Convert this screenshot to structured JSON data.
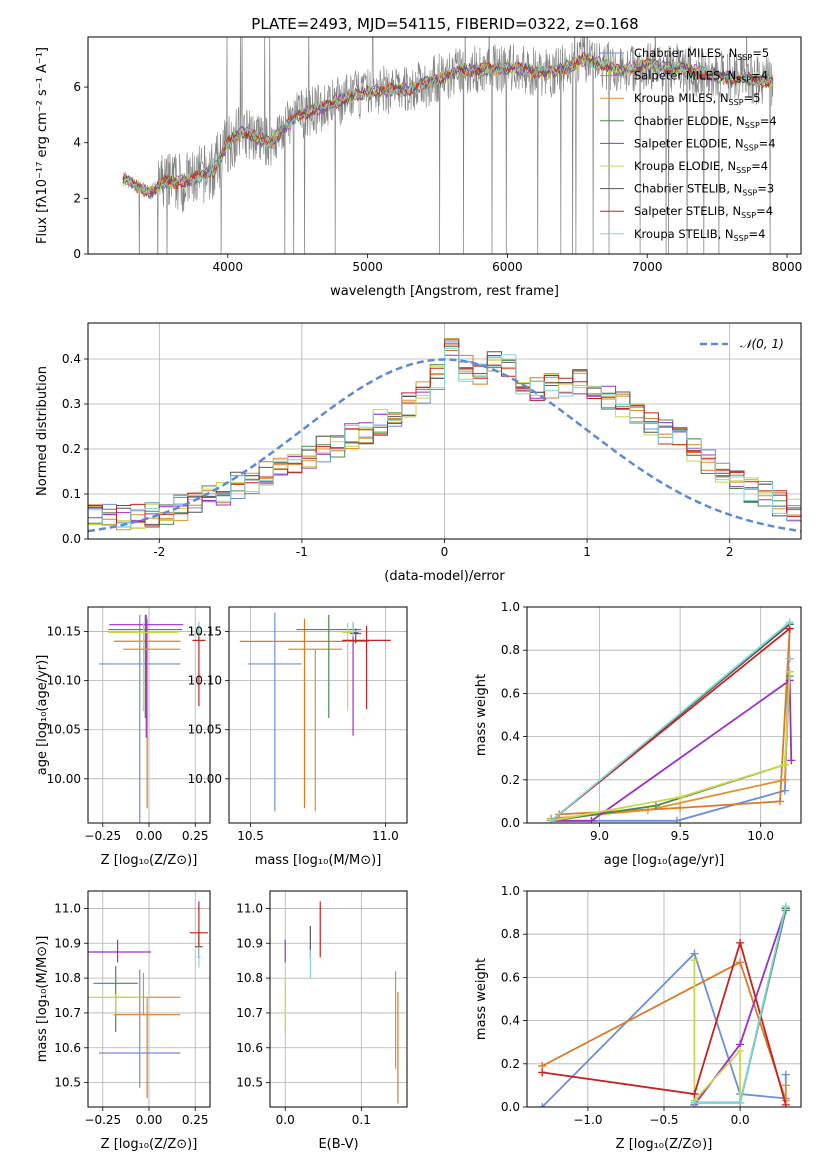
{
  "figure_title": "PLATE=2493, MJD=54115, FIBERID=0322, z=0.168",
  "colors": {
    "Chabrier MILES": "#6a8fdc",
    "Salpeter MILES": "#dd7a26",
    "Kroupa MILES": "#e58f2c",
    "Chabrier ELODIE": "#4e8a4e",
    "Salpeter ELODIE": "#9b30c8",
    "Kroupa ELODIE": "#c8d84a",
    "Chabrier STELIB": "#555555",
    "Salpeter STELIB": "#c8211e",
    "Kroupa STELIB": "#7fd8d8",
    "normal": "#5b8bd8",
    "data": "#808080"
  },
  "chart_data": [
    {
      "id": "spectrum",
      "type": "line",
      "title": "PLATE=2493, MJD=54115, FIBERID=0322, z=0.168",
      "xlabel": "wavelength [Angstrom, rest frame]",
      "ylabel": "Flux [fλ10⁻¹⁷ erg cm⁻² s⁻¹ A⁻¹]",
      "xlim": [
        3000,
        8100
      ],
      "ylim": [
        0,
        7.8
      ],
      "xticks": [
        4000,
        5000,
        6000,
        7000,
        8000
      ],
      "yticks": [
        0,
        2,
        4,
        6
      ],
      "x_start": 3250,
      "x_end": 7900,
      "continuum_anchors": [
        [
          3250,
          2.7
        ],
        [
          3450,
          2.2
        ],
        [
          3550,
          2.6
        ],
        [
          3700,
          2.6
        ],
        [
          3900,
          3.0
        ],
        [
          4000,
          4.0
        ],
        [
          4100,
          4.4
        ],
        [
          4300,
          4.0
        ],
        [
          4500,
          5.0
        ],
        [
          4700,
          5.3
        ],
        [
          4900,
          5.7
        ],
        [
          5100,
          5.9
        ],
        [
          5300,
          5.9
        ],
        [
          5500,
          6.3
        ],
        [
          5700,
          6.6
        ],
        [
          6000,
          6.7
        ],
        [
          6300,
          6.5
        ],
        [
          6560,
          7.0
        ],
        [
          6800,
          6.6
        ],
        [
          7000,
          6.8
        ],
        [
          7300,
          6.6
        ],
        [
          7500,
          6.4
        ],
        [
          7900,
          6.2
        ]
      ],
      "legend": [
        {
          "label": "Chabrier MILES, N",
          "sub": "SSP",
          "value": "=5"
        },
        {
          "label": "Salpeter MILES, N",
          "sub": "SSP",
          "value": "=4"
        },
        {
          "label": "Kroupa MILES, N",
          "sub": "SSP",
          "value": "=5"
        },
        {
          "label": "Chabrier ELODIE, N",
          "sub": "SSP",
          "value": "=4"
        },
        {
          "label": "Salpeter ELODIE, N",
          "sub": "SSP",
          "value": "=4"
        },
        {
          "label": "Kroupa ELODIE, N",
          "sub": "SSP",
          "value": "=4"
        },
        {
          "label": "Chabrier STELIB, N",
          "sub": "SSP",
          "value": "=3"
        },
        {
          "label": "Salpeter STELIB, N",
          "sub": "SSP",
          "value": "=4"
        },
        {
          "label": "Kroupa STELIB, N",
          "sub": "SSP",
          "value": "=4"
        }
      ],
      "series": [
        "Chabrier MILES",
        "Salpeter MILES",
        "Kroupa MILES",
        "Chabrier ELODIE",
        "Salpeter ELODIE",
        "Kroupa ELODIE",
        "Chabrier STELIB",
        "Salpeter STELIB",
        "Kroupa STELIB"
      ],
      "grid": false,
      "legend_position": "right"
    },
    {
      "id": "residuals",
      "type": "line",
      "xlabel": "(data-model)/error",
      "ylabel": "Normed distribution",
      "xlim": [
        -2.5,
        2.5
      ],
      "ylim": [
        0,
        0.48
      ],
      "xticks": [
        -2,
        -1,
        0,
        1,
        2
      ],
      "yticks": [
        0.0,
        0.1,
        0.2,
        0.3,
        0.4
      ],
      "ytick_labels": [
        "0.0",
        "0.1",
        "0.2",
        "0.3",
        "0.4"
      ],
      "legend": "𝒩(0, 1)",
      "legend_position": "top-right",
      "grid": true,
      "bin_width": 0.1,
      "histogram_mean": [
        0.05,
        0.05,
        0.05,
        0.05,
        0.055,
        0.06,
        0.07,
        0.08,
        0.09,
        0.1,
        0.12,
        0.13,
        0.145,
        0.16,
        0.17,
        0.18,
        0.2,
        0.21,
        0.23,
        0.24,
        0.26,
        0.28,
        0.3,
        0.33,
        0.36,
        0.43,
        0.38,
        0.37,
        0.4,
        0.38,
        0.35,
        0.33,
        0.34,
        0.34,
        0.35,
        0.33,
        0.31,
        0.3,
        0.28,
        0.26,
        0.24,
        0.22,
        0.2,
        0.17,
        0.15,
        0.13,
        0.11,
        0.1,
        0.08,
        0.06
      ]
    },
    {
      "id": "age-vs-z",
      "type": "scatter",
      "xlabel": "Z [log₁₀(Z/Z⊙)]",
      "ylabel": "age  [log₁₀(age/yr)]",
      "xlim": [
        -0.33,
        0.33
      ],
      "ylim": [
        9.955,
        10.175
      ],
      "xticks": [
        -0.25,
        0.0,
        0.25
      ],
      "xtick_labels": [
        "−0.25",
        "0.00",
        "0.25"
      ],
      "yticks": [
        10.0,
        10.05,
        10.1,
        10.15
      ],
      "ytick_labels": [
        "10.00",
        "10.05",
        "10.10",
        "10.15"
      ],
      "grid": true,
      "points": [
        {
          "series": "Chabrier MILES",
          "x": -0.05,
          "y": 10.117,
          "xerr": 0.22,
          "yerr_lo": 0.18,
          "yerr_hi": 0.05
        },
        {
          "series": "Salpeter MILES",
          "x": -0.01,
          "y": 10.14,
          "xerr": 0.18,
          "yerr_lo": 0.17,
          "yerr_hi": 0.023
        },
        {
          "series": "Kroupa MILES",
          "x": -0.01,
          "y": 10.14,
          "xerr": 0.18,
          "yerr_lo": 0.17,
          "yerr_hi": 0.023
        },
        {
          "series": "Chabrier ELODIE",
          "x": -0.02,
          "y": 10.152,
          "xerr": 0.2,
          "yerr_lo": 0.09,
          "yerr_hi": 0.015
        },
        {
          "series": "Salpeter ELODIE",
          "x": -0.015,
          "y": 10.157,
          "xerr": 0.2,
          "yerr_lo": 0.115,
          "yerr_hi": 0.01
        },
        {
          "series": "Kroupa ELODIE",
          "x": -0.03,
          "y": 10.149,
          "xerr": 0.19,
          "yerr_lo": 0.08,
          "yerr_hi": 0.01
        },
        {
          "series": "Chabrier STELIB",
          "x": 0.27,
          "y": 10.148,
          "xerr": 0.01,
          "yerr_lo": 0.01,
          "yerr_hi": 0.01
        },
        {
          "series": "Salpeter STELIB",
          "x": 0.27,
          "y": 10.141,
          "xerr": 0.035,
          "yerr_lo": 0.067,
          "yerr_hi": 0.015
        },
        {
          "series": "Kroupa STELIB",
          "x": 0.27,
          "y": 10.15,
          "xerr": 0.01,
          "yerr_lo": 0.005,
          "yerr_hi": 0.01
        },
        {
          "series": "Kroupa MILES",
          "x": 0.015,
          "y": 10.132,
          "xerr": 0.155,
          "yerr_lo": 0.0,
          "yerr_hi": 0.0
        }
      ]
    },
    {
      "id": "age-vs-mass",
      "type": "scatter",
      "xlabel": "mass [log₁₀(M/M⊙)]",
      "xlim": [
        10.42,
        11.08
      ],
      "ylim": [
        9.955,
        10.175
      ],
      "xticks": [
        10.5,
        11.0
      ],
      "xtick_labels": [
        "10.5",
        "11.0"
      ],
      "yticks": [
        10.0,
        10.05,
        10.1,
        10.15
      ],
      "ytick_labels": [
        "10.00",
        "10.05",
        "10.10",
        "10.15"
      ],
      "grid": true,
      "points": [
        {
          "series": "Chabrier MILES",
          "x": 10.59,
          "y": 10.117,
          "xerr": 0.1,
          "yerr_lo": 0.15,
          "yerr_hi": 0.052
        },
        {
          "series": "Salpeter MILES",
          "x": 10.7,
          "y": 10.14,
          "xerr": 0.24,
          "yerr_lo": 0.17,
          "yerr_hi": 0.023
        },
        {
          "series": "Kroupa MILES",
          "x": 10.74,
          "y": 10.132,
          "xerr": 0.1,
          "yerr_lo": 0.165,
          "yerr_hi": 0.0
        },
        {
          "series": "Chabrier ELODIE",
          "x": 10.79,
          "y": 10.152,
          "xerr": 0.12,
          "yerr_lo": 0.09,
          "yerr_hi": 0.015
        },
        {
          "series": "Salpeter ELODIE",
          "x": 10.88,
          "y": 10.149,
          "xerr": 0.02,
          "yerr_lo": 0.105,
          "yerr_hi": 0.01
        },
        {
          "series": "Kroupa ELODIE",
          "x": 10.86,
          "y": 10.149,
          "xerr": 0.02,
          "yerr_lo": 0.08,
          "yerr_hi": 0.01
        },
        {
          "series": "Chabrier STELIB",
          "x": 10.89,
          "y": 10.148,
          "xerr": 0.02,
          "yerr_lo": 0.01,
          "yerr_hi": 0.005
        },
        {
          "series": "Salpeter STELIB",
          "x": 10.93,
          "y": 10.141,
          "xerr": 0.09,
          "yerr_lo": 0.07,
          "yerr_hi": 0.015
        },
        {
          "series": "Kroupa STELIB",
          "x": 10.88,
          "y": 10.15,
          "xerr": 0.02,
          "yerr_lo": 0.005,
          "yerr_hi": 0.01
        }
      ]
    },
    {
      "id": "weight-vs-age",
      "type": "line",
      "xlabel": "age  [log₁₀(age/yr)]",
      "ylabel": "mass weight",
      "xlim": [
        8.55,
        10.25
      ],
      "ylim": [
        0,
        1
      ],
      "xticks": [
        9.0,
        9.5,
        10.0
      ],
      "xtick_labels": [
        "9.0",
        "9.5",
        "10.0"
      ],
      "yticks": [
        0,
        0.2,
        0.4,
        0.6,
        0.8,
        1.0
      ],
      "ytick_labels": [
        "0.0",
        "0.2",
        "0.4",
        "0.6",
        "0.8",
        "1.0"
      ],
      "grid": true,
      "series": [
        {
          "name": "Chabrier MILES",
          "x": [
            8.7,
            9.48,
            10.15,
            10.18
          ],
          "y": [
            0.01,
            0.01,
            0.15,
            0.92
          ]
        },
        {
          "name": "Salpeter MILES",
          "x": [
            8.75,
            9.5,
            10.12,
            10.18
          ],
          "y": [
            0.04,
            0.07,
            0.1,
            0.9
          ]
        },
        {
          "name": "Kroupa MILES",
          "x": [
            8.7,
            9.3,
            10.15,
            10.18
          ],
          "y": [
            0.02,
            0.06,
            0.2,
            0.7
          ]
        },
        {
          "name": "Chabrier ELODIE",
          "x": [
            8.7,
            9.35,
            10.15,
            10.18
          ],
          "y": [
            0.01,
            0.08,
            0.27,
            0.68
          ]
        },
        {
          "name": "Salpeter ELODIE",
          "x": [
            8.7,
            8.95,
            10.18,
            10.19
          ],
          "y": [
            0.01,
            0.01,
            0.66,
            0.29
          ]
        },
        {
          "name": "Kroupa ELODIE",
          "x": [
            8.7,
            9.5,
            10.15,
            10.18
          ],
          "y": [
            0.01,
            0.12,
            0.27,
            0.7
          ]
        },
        {
          "name": "Chabrier STELIB",
          "x": [
            8.7,
            10.18
          ],
          "y": [
            0.01,
            0.92
          ]
        },
        {
          "name": "Salpeter STELIB",
          "x": [
            8.7,
            10.18
          ],
          "y": [
            0.01,
            0.9
          ]
        },
        {
          "name": "Kroupa STELIB",
          "x": [
            8.7,
            10.18
          ],
          "y": [
            0.01,
            0.93
          ]
        }
      ],
      "extra_points": [
        {
          "series": "Salpeter STELIB",
          "x": 10.18,
          "y": 0.76
        },
        {
          "series": "Kroupa STELIB",
          "x": 10.18,
          "y": 0.76
        }
      ]
    },
    {
      "id": "mass-vs-z",
      "type": "scatter",
      "xlabel": "Z [log₁₀(Z/Z⊙)]",
      "ylabel": "mass [log₁₀(M/M⊙)]",
      "xlim": [
        -0.33,
        0.33
      ],
      "ylim": [
        10.43,
        11.05
      ],
      "xticks": [
        -0.25,
        0.0,
        0.25
      ],
      "xtick_labels": [
        "−0.25",
        "0.00",
        "0.25"
      ],
      "yticks": [
        10.5,
        10.6,
        10.7,
        10.8,
        10.9,
        11.0
      ],
      "ytick_labels": [
        "10.5",
        "10.6",
        "10.7",
        "10.8",
        "10.9",
        "11.0"
      ],
      "grid": true,
      "points": [
        {
          "series": "Chabrier MILES",
          "x": -0.05,
          "y": 10.585,
          "xerr": 0.22,
          "yerr_lo": 0.1,
          "yerr_hi": 0.24
        },
        {
          "series": "Salpeter MILES",
          "x": -0.01,
          "y": 10.695,
          "xerr": 0.18,
          "yerr_lo": 0.24,
          "yerr_hi": 0.0
        },
        {
          "series": "Kroupa MILES",
          "x": -0.01,
          "y": 10.745,
          "xerr": 0.18,
          "yerr_lo": 0.05,
          "yerr_hi": 0.0
        },
        {
          "series": "Chabrier ELODIE",
          "x": -0.18,
          "y": 10.785,
          "xerr": 0.12,
          "yerr_lo": 0.14,
          "yerr_hi": 0.05
        },
        {
          "series": "Salpeter ELODIE",
          "x": -0.17,
          "y": 10.875,
          "xerr": 0.18,
          "yerr_lo": 0.03,
          "yerr_hi": 0.035
        },
        {
          "series": "Kroupa ELODIE",
          "x": -0.18,
          "y": 10.745,
          "xerr": 0.17,
          "yerr_lo": 0.05,
          "yerr_hi": 0.01
        },
        {
          "series": "Chabrier STELIB",
          "x": 0.27,
          "y": 10.89,
          "xerr": 0.02,
          "yerr_lo": 0.03,
          "yerr_hi": 0.04
        },
        {
          "series": "Salpeter STELIB",
          "x": 0.27,
          "y": 10.93,
          "xerr": 0.05,
          "yerr_lo": 0.07,
          "yerr_hi": 0.09
        },
        {
          "series": "Kroupa STELIB",
          "x": 0.27,
          "y": 10.86,
          "xerr": 0.01,
          "yerr_lo": 0.03,
          "yerr_hi": 0.03
        },
        {
          "series": "Kroupa MILES",
          "x": -0.03,
          "y": 10.745,
          "xerr": 0.0,
          "yerr_lo": 0.05,
          "yerr_hi": 0.07
        }
      ]
    },
    {
      "id": "mass-vs-ebv",
      "type": "scatter",
      "xlabel": "E(B-V)",
      "xlim": [
        -0.02,
        0.16
      ],
      "ylim": [
        10.43,
        11.05
      ],
      "xticks": [
        0.0,
        0.1
      ],
      "xtick_labels": [
        "0.0",
        "0.1"
      ],
      "yticks": [
        10.5,
        10.6,
        10.7,
        10.8,
        10.9,
        11.0
      ],
      "ytick_labels": [
        "10.5",
        "10.6",
        "10.7",
        "10.8",
        "10.9",
        "11.0"
      ],
      "grid": true,
      "points": [
        {
          "series": "Salpeter ELODIE",
          "x": 0.0,
          "y": 10.875,
          "xerr": 0.0,
          "yerr_lo": 0.03,
          "yerr_hi": 0.035
        },
        {
          "series": "Kroupa ELODIE",
          "x": 0.0,
          "y": 10.72,
          "xerr": 0.0,
          "yerr_lo": 0.08,
          "yerr_hi": 0.08
        },
        {
          "series": "Chabrier STELIB",
          "x": 0.033,
          "y": 10.89,
          "xerr": 0.0,
          "yerr_lo": 0.03,
          "yerr_hi": 0.06
        },
        {
          "series": "Kroupa STELIB",
          "x": 0.033,
          "y": 10.84,
          "xerr": 0.0,
          "yerr_lo": 0.04,
          "yerr_hi": 0.04
        },
        {
          "series": "Salpeter STELIB",
          "x": 0.046,
          "y": 10.94,
          "xerr": 0.0,
          "yerr_lo": 0.08,
          "yerr_hi": 0.08
        },
        {
          "series": "Kroupa MILES",
          "x": 0.145,
          "y": 10.68,
          "xerr": 0.0,
          "yerr_lo": 0.14,
          "yerr_hi": 0.14
        },
        {
          "series": "Salpeter MILES",
          "x": 0.148,
          "y": 10.6,
          "xerr": 0.0,
          "yerr_lo": 0.16,
          "yerr_hi": 0.16
        }
      ]
    },
    {
      "id": "weight-vs-z",
      "type": "line",
      "xlabel": "Z [log₁₀(Z/Z⊙)]",
      "ylabel": "mass weight",
      "xlim": [
        -1.4,
        0.4
      ],
      "ylim": [
        0,
        1
      ],
      "xticks": [
        -1.0,
        -0.5,
        0.0
      ],
      "xtick_labels": [
        "−1.0",
        "−0.5",
        "0.0"
      ],
      "yticks": [
        0,
        0.2,
        0.4,
        0.6,
        0.8,
        1.0
      ],
      "ytick_labels": [
        "0.0",
        "0.2",
        "0.4",
        "0.6",
        "0.8",
        "1.0"
      ],
      "grid": true,
      "series": [
        {
          "name": "Chabrier MILES",
          "x": [
            -1.3,
            -0.3,
            0.0,
            0.3,
            0.3
          ],
          "y": [
            0.0,
            0.71,
            0.06,
            0.04,
            0.15
          ]
        },
        {
          "name": "Salpeter MILES",
          "x": [
            -1.3,
            0.0,
            0.3
          ],
          "y": [
            0.19,
            0.67,
            0.03
          ]
        },
        {
          "name": "Kroupa MILES",
          "x": [
            0.3,
            0.3
          ],
          "y": [
            0.03,
            0.1
          ]
        },
        {
          "name": "Chabrier ELODIE",
          "x": [
            -0.3,
            0.0,
            0.3
          ],
          "y": [
            0.02,
            0.02,
            0.91
          ]
        },
        {
          "name": "Salpeter ELODIE",
          "x": [
            -0.3,
            0.0,
            0.3
          ],
          "y": [
            0.01,
            0.29,
            0.92
          ]
        },
        {
          "name": "Kroupa ELODIE",
          "x": [
            -0.3,
            -0.3,
            0.0,
            0.0,
            0.3
          ],
          "y": [
            0.68,
            0.03,
            0.26,
            0.02,
            0.92
          ]
        },
        {
          "name": "Chabrier STELIB",
          "x": [
            -0.3,
            0.0,
            0.3
          ],
          "y": [
            0.02,
            0.02,
            0.92
          ]
        },
        {
          "name": "Salpeter STELIB",
          "x": [
            -1.3,
            -0.3,
            0.0,
            0.3
          ],
          "y": [
            0.16,
            0.06,
            0.76,
            0.01
          ]
        },
        {
          "name": "Kroupa STELIB",
          "x": [
            -0.3,
            0.0,
            0.3
          ],
          "y": [
            0.02,
            0.02,
            0.93
          ]
        }
      ]
    }
  ]
}
